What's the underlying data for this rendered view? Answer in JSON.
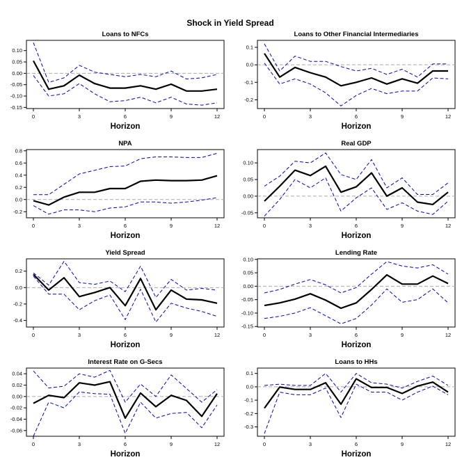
{
  "figure_title": "Shock in Yield Spread",
  "colors": {
    "median": "#000000",
    "band": "#0000cc",
    "zero_line": "#aaaaaa"
  },
  "chart_data": [
    {
      "type": "line",
      "title": "Loans to NFCs",
      "xlabel": "Horizon",
      "ylabel": "",
      "xticks": [
        0,
        3,
        6,
        9,
        12
      ],
      "yticks": [
        0.1,
        0.05,
        0.0,
        -0.05,
        -0.1,
        -0.15
      ],
      "ytick_labels": [
        "0.10",
        "0.05",
        "0.00",
        "-0.05",
        "-0.10",
        "-0.15"
      ],
      "ylim": [
        -0.155,
        0.145
      ],
      "x": [
        0,
        1,
        2,
        3,
        4,
        5,
        6,
        7,
        8,
        9,
        10,
        11,
        12
      ],
      "series": [
        {
          "role": "median",
          "values": [
            0.055,
            -0.07,
            -0.055,
            -0.008,
            -0.045,
            -0.065,
            -0.065,
            -0.055,
            -0.07,
            -0.048,
            -0.078,
            -0.078,
            -0.07
          ]
        },
        {
          "role": "lower",
          "values": [
            -0.01,
            -0.1,
            -0.09,
            -0.045,
            -0.09,
            -0.125,
            -0.12,
            -0.105,
            -0.13,
            -0.105,
            -0.135,
            -0.14,
            -0.13
          ]
        },
        {
          "role": "upper",
          "values": [
            0.135,
            -0.04,
            -0.02,
            0.035,
            0.005,
            -0.005,
            -0.015,
            -0.005,
            -0.015,
            0.01,
            -0.025,
            -0.02,
            -0.005
          ]
        }
      ]
    },
    {
      "type": "line",
      "title": "Loans to Other Financial Intermediaries",
      "xlabel": "Horizon",
      "ylabel": "",
      "xticks": [
        0,
        3,
        6,
        9,
        12
      ],
      "yticks": [
        0.1,
        0.0,
        -0.1,
        -0.2
      ],
      "ytick_labels": [
        "0.1",
        "0.0",
        "-0.1",
        "-0.2"
      ],
      "ylim": [
        -0.25,
        0.14
      ],
      "x": [
        0,
        1,
        2,
        3,
        4,
        5,
        6,
        7,
        8,
        9,
        10,
        11,
        12
      ],
      "series": [
        {
          "role": "median",
          "values": [
            0.065,
            -0.07,
            -0.015,
            -0.045,
            -0.07,
            -0.12,
            -0.1,
            -0.075,
            -0.11,
            -0.08,
            -0.105,
            -0.035,
            -0.035
          ]
        },
        {
          "role": "lower",
          "values": [
            0.01,
            -0.11,
            -0.08,
            -0.11,
            -0.16,
            -0.235,
            -0.175,
            -0.135,
            -0.165,
            -0.15,
            -0.15,
            -0.075,
            -0.08
          ]
        },
        {
          "role": "upper",
          "values": [
            0.12,
            -0.035,
            0.05,
            0.02,
            0.02,
            -0.01,
            -0.035,
            -0.02,
            -0.055,
            -0.025,
            -0.07,
            0.005,
            0.005
          ]
        }
      ]
    },
    {
      "type": "line",
      "title": "NPA",
      "xlabel": "Horizon",
      "ylabel": "",
      "xticks": [
        0,
        3,
        6,
        9,
        12
      ],
      "yticks": [
        0.8,
        0.6,
        0.4,
        0.2,
        0.0,
        -0.2
      ],
      "ytick_labels": [
        "0.8",
        "0.6",
        "0.4",
        "0.2",
        "0.0",
        "-0.2"
      ],
      "ylim": [
        -0.3,
        0.82
      ],
      "x": [
        0,
        1,
        2,
        3,
        4,
        5,
        6,
        7,
        8,
        9,
        10,
        11,
        12
      ],
      "series": [
        {
          "role": "median",
          "values": [
            -0.02,
            -0.09,
            0.04,
            0.12,
            0.12,
            0.18,
            0.18,
            0.3,
            0.32,
            0.31,
            0.31,
            0.32,
            0.39
          ]
        },
        {
          "role": "lower",
          "values": [
            -0.1,
            -0.24,
            -0.17,
            -0.17,
            -0.2,
            -0.14,
            -0.12,
            -0.04,
            -0.04,
            -0.06,
            -0.04,
            -0.01,
            0.03
          ]
        },
        {
          "role": "upper",
          "values": [
            0.08,
            0.08,
            0.25,
            0.42,
            0.48,
            0.54,
            0.55,
            0.67,
            0.7,
            0.7,
            0.69,
            0.69,
            0.76
          ]
        }
      ]
    },
    {
      "type": "line",
      "title": "Real GDP",
      "xlabel": "Horizon",
      "ylabel": "",
      "xticks": [
        0,
        3,
        6,
        9,
        12
      ],
      "yticks": [
        0.1,
        0.05,
        0.0,
        -0.05
      ],
      "ytick_labels": [
        "0.10",
        "0.05",
        "0.00",
        "-0.05"
      ],
      "ylim": [
        -0.065,
        0.14
      ],
      "x": [
        0,
        1,
        2,
        3,
        4,
        5,
        6,
        7,
        8,
        9,
        10,
        11,
        12
      ],
      "series": [
        {
          "role": "median",
          "values": [
            -0.015,
            0.03,
            0.078,
            0.062,
            0.09,
            0.012,
            0.028,
            0.07,
            0.0,
            0.025,
            -0.018,
            -0.025,
            0.012
          ]
        },
        {
          "role": "lower",
          "values": [
            -0.06,
            -0.01,
            0.05,
            0.025,
            0.055,
            -0.045,
            -0.005,
            0.025,
            -0.04,
            -0.02,
            -0.045,
            -0.055,
            -0.015
          ]
        },
        {
          "role": "upper",
          "values": [
            0.03,
            0.06,
            0.105,
            0.1,
            0.13,
            0.065,
            0.05,
            0.11,
            0.025,
            0.055,
            0.005,
            0.005,
            0.04
          ]
        }
      ]
    },
    {
      "type": "line",
      "title": "Yield Spread",
      "xlabel": "Horizon",
      "ylabel": "",
      "xticks": [
        0,
        3,
        6,
        9,
        12
      ],
      "yticks": [
        0.2,
        0.0,
        -0.2,
        -0.4
      ],
      "ytick_labels": [
        "0.2",
        "0.0",
        "-0.2",
        "-0.4"
      ],
      "ylim": [
        -0.48,
        0.35
      ],
      "x": [
        0,
        1,
        2,
        3,
        4,
        5,
        6,
        7,
        8,
        9,
        10,
        11,
        12
      ],
      "series": [
        {
          "role": "median",
          "values": [
            0.16,
            -0.03,
            0.12,
            -0.11,
            -0.06,
            0.0,
            -0.22,
            0.11,
            -0.27,
            -0.03,
            -0.14,
            -0.15,
            -0.19
          ]
        },
        {
          "role": "lower",
          "values": [
            0.14,
            -0.08,
            -0.08,
            -0.27,
            -0.16,
            -0.09,
            -0.39,
            -0.02,
            -0.42,
            -0.19,
            -0.25,
            -0.29,
            -0.35
          ]
        },
        {
          "role": "upper",
          "values": [
            0.18,
            0.03,
            0.32,
            0.06,
            0.04,
            0.08,
            -0.05,
            0.26,
            -0.12,
            0.1,
            -0.03,
            -0.01,
            -0.03
          ]
        }
      ]
    },
    {
      "type": "line",
      "title": "Lending Rate",
      "xlabel": "Horizon",
      "ylabel": "",
      "xticks": [
        0,
        3,
        6,
        9,
        12
      ],
      "yticks": [
        0.1,
        0.05,
        0.0,
        -0.05,
        -0.1,
        -0.15
      ],
      "ytick_labels": [
        "0.10",
        "0.05",
        "0.00",
        "-0.05",
        "-0.10",
        "-0.15"
      ],
      "ylim": [
        -0.152,
        0.102
      ],
      "x": [
        0,
        1,
        2,
        3,
        4,
        5,
        6,
        7,
        8,
        9,
        10,
        11,
        12
      ],
      "series": [
        {
          "role": "median",
          "values": [
            -0.072,
            -0.062,
            -0.048,
            -0.028,
            -0.052,
            -0.082,
            -0.062,
            -0.012,
            0.042,
            0.008,
            0.008,
            0.038,
            0.01
          ]
        },
        {
          "role": "lower",
          "values": [
            -0.12,
            -0.112,
            -0.1,
            -0.08,
            -0.11,
            -0.14,
            -0.12,
            -0.07,
            -0.01,
            -0.06,
            -0.05,
            -0.01,
            -0.062
          ]
        },
        {
          "role": "upper",
          "values": [
            -0.025,
            -0.012,
            0.008,
            0.025,
            0.005,
            -0.025,
            -0.005,
            0.045,
            0.092,
            0.075,
            0.068,
            0.08,
            0.045
          ]
        }
      ]
    },
    {
      "type": "line",
      "title": "Interest Rate on G-Secs",
      "xlabel": "Horizon",
      "ylabel": "",
      "xticks": [
        0,
        3,
        6,
        9,
        12
      ],
      "yticks": [
        0.04,
        0.02,
        0.0,
        -0.02,
        -0.04,
        -0.06
      ],
      "ytick_labels": [
        "0.04",
        "0.02",
        "0.00",
        "-0.02",
        "-0.04",
        "-0.06"
      ],
      "ylim": [
        -0.07,
        0.05
      ],
      "x": [
        0,
        1,
        2,
        3,
        4,
        5,
        6,
        7,
        8,
        9,
        10,
        11,
        12
      ],
      "series": [
        {
          "role": "median",
          "values": [
            -0.012,
            0.002,
            -0.002,
            0.024,
            0.02,
            0.026,
            -0.038,
            0.006,
            -0.018,
            0.002,
            -0.007,
            -0.035,
            0.005
          ]
        },
        {
          "role": "lower",
          "values": [
            -0.07,
            -0.01,
            -0.02,
            0.008,
            0.005,
            0.004,
            -0.065,
            -0.01,
            -0.038,
            -0.03,
            -0.028,
            -0.055,
            -0.015
          ]
        },
        {
          "role": "upper",
          "values": [
            0.045,
            0.015,
            0.018,
            0.04,
            0.034,
            0.046,
            -0.01,
            0.022,
            0.0,
            0.038,
            0.014,
            -0.01,
            0.012
          ]
        }
      ]
    },
    {
      "type": "line",
      "title": "Loans to HHs",
      "xlabel": "Horizon",
      "ylabel": "",
      "xticks": [
        0,
        3,
        6,
        9,
        12
      ],
      "yticks": [
        0.1,
        0.0,
        -0.1,
        -0.2,
        -0.3
      ],
      "ytick_labels": [
        "0.1",
        "0.0",
        "-0.1",
        "-0.2",
        "-0.3"
      ],
      "ylim": [
        -0.37,
        0.14
      ],
      "x": [
        0,
        1,
        2,
        3,
        4,
        5,
        6,
        7,
        8,
        9,
        10,
        11,
        12
      ],
      "series": [
        {
          "role": "median",
          "values": [
            -0.16,
            -0.002,
            -0.02,
            -0.02,
            0.03,
            -0.13,
            0.06,
            -0.005,
            -0.005,
            -0.05,
            0.005,
            0.035,
            -0.04
          ]
        },
        {
          "role": "lower",
          "values": [
            -0.35,
            -0.04,
            -0.06,
            -0.06,
            -0.01,
            -0.23,
            0.02,
            -0.04,
            -0.04,
            -0.1,
            -0.04,
            0.005,
            -0.06
          ]
        },
        {
          "role": "upper",
          "values": [
            0.01,
            0.02,
            0.01,
            0.01,
            0.1,
            -0.04,
            0.1,
            0.03,
            0.02,
            -0.01,
            0.04,
            0.08,
            0.01
          ]
        }
      ]
    }
  ]
}
